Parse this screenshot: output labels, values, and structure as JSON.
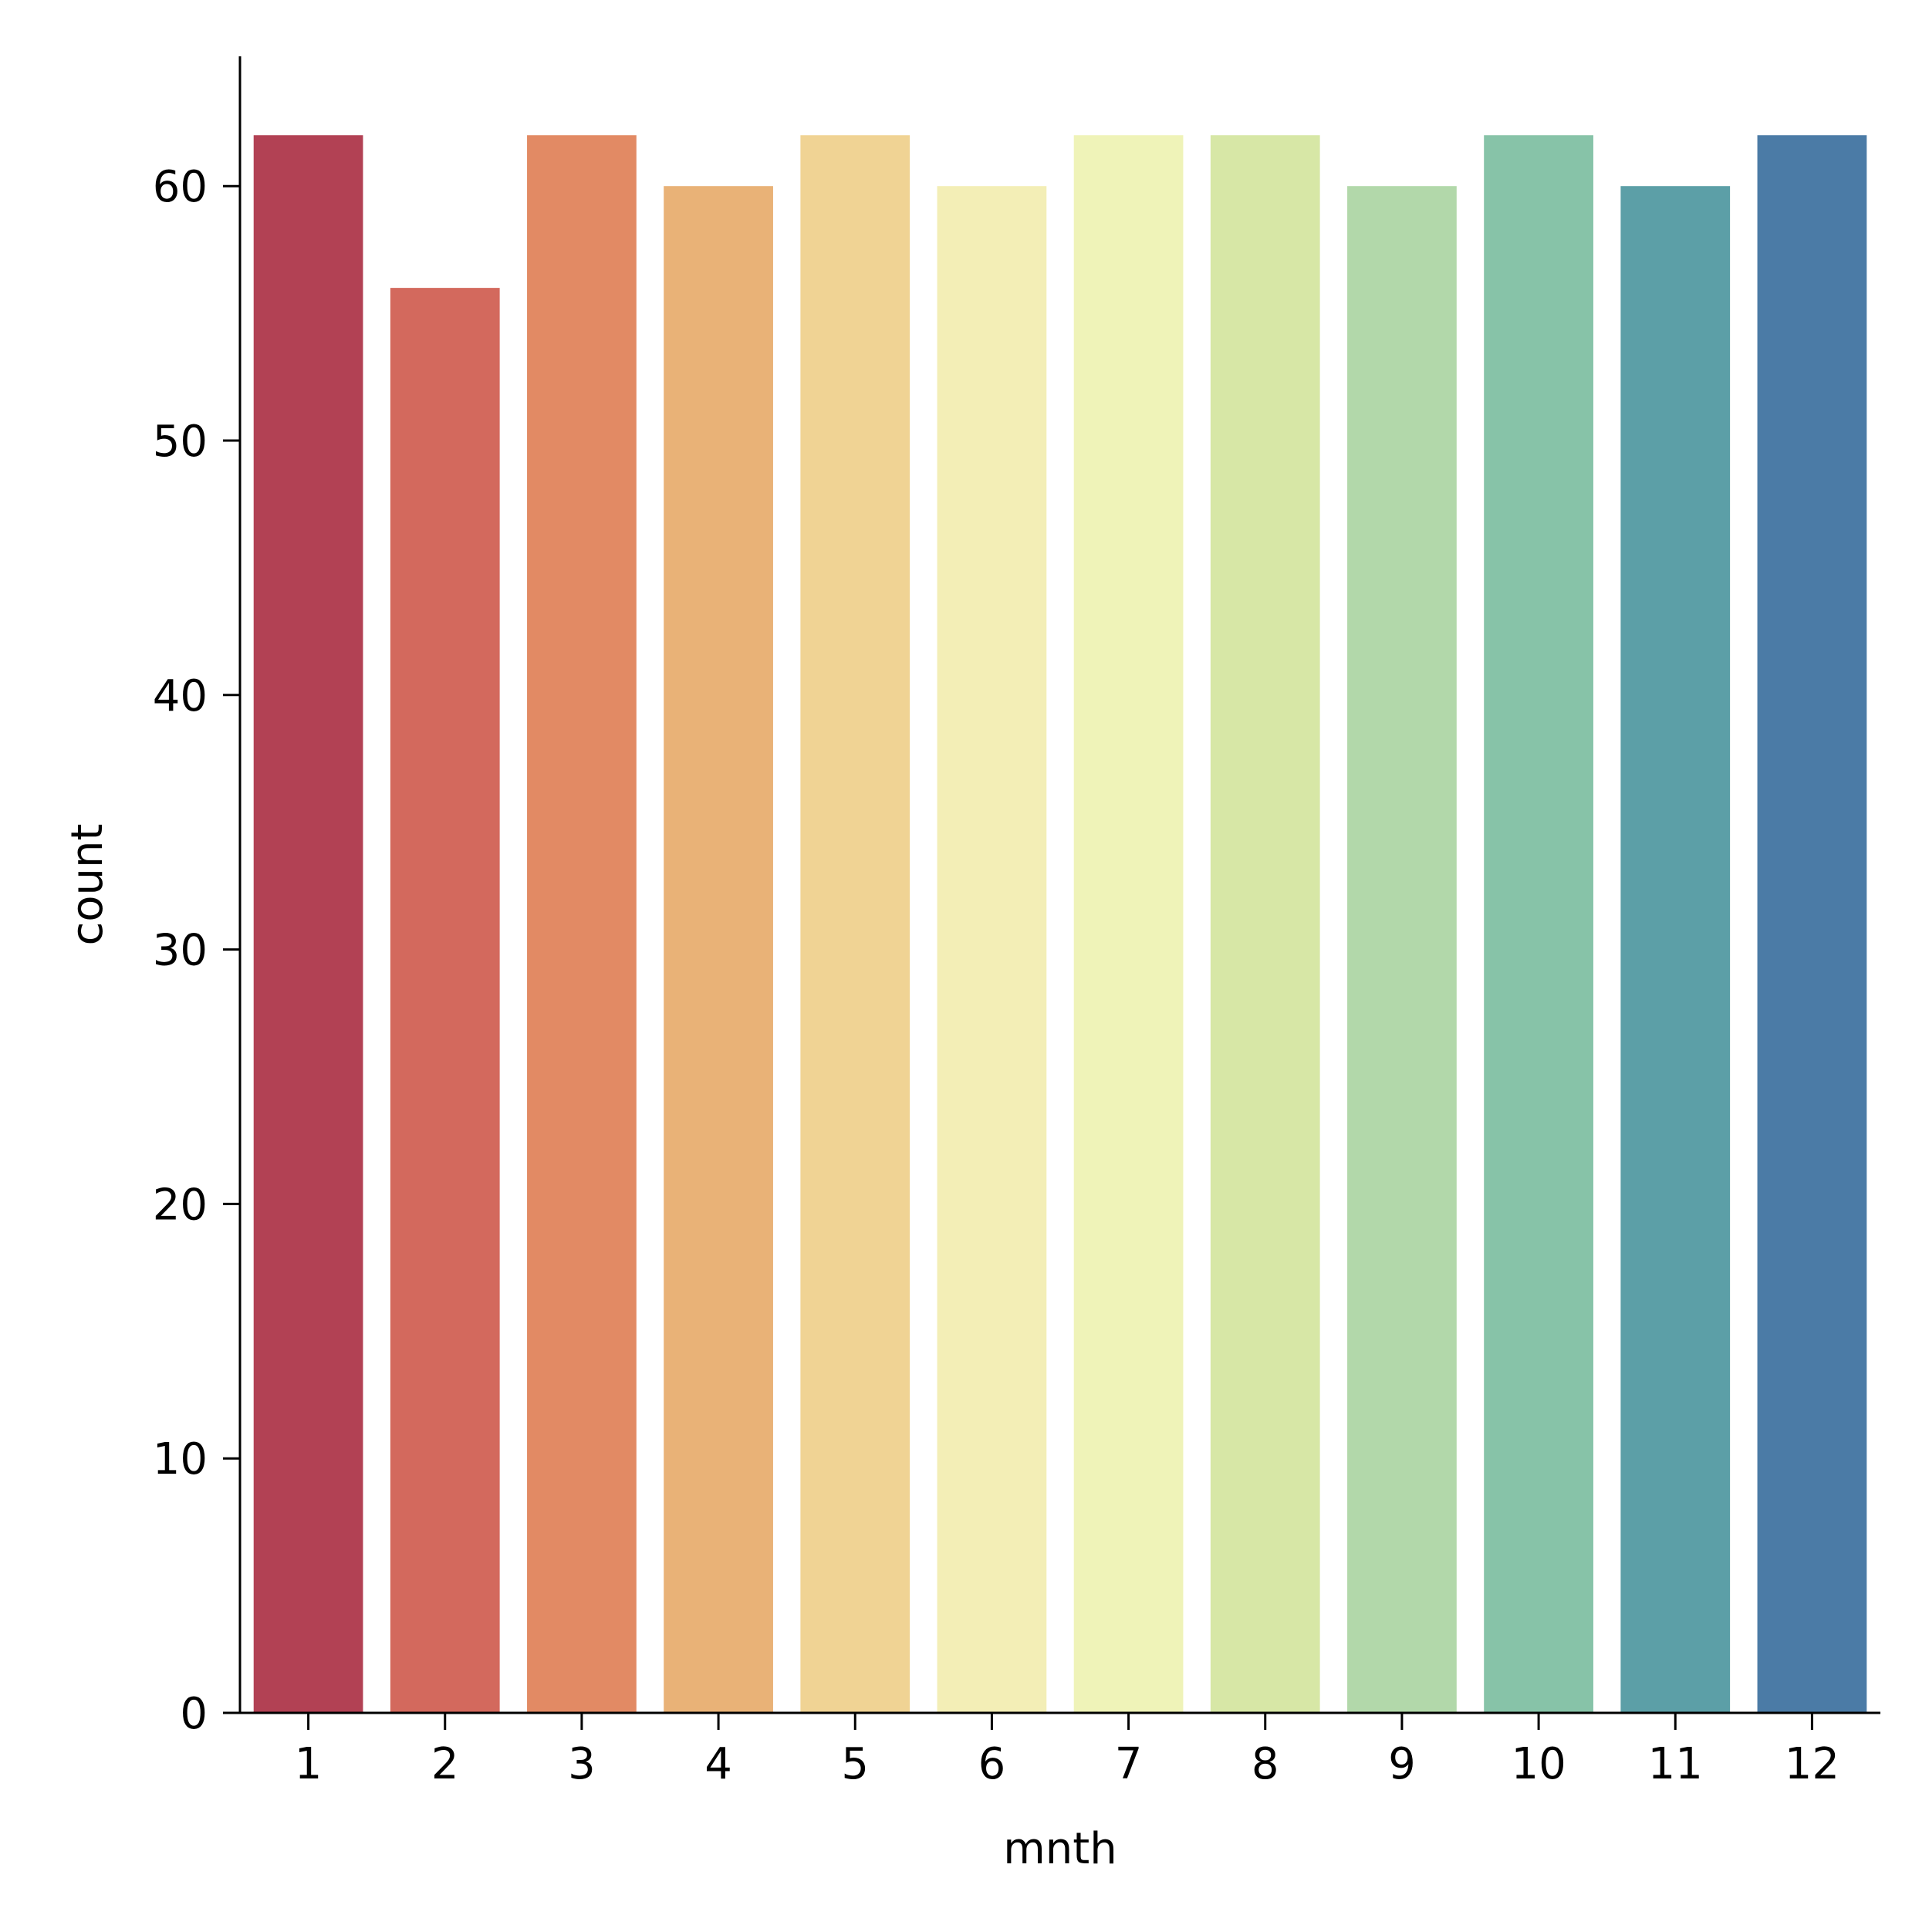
{
  "chart_data": {
    "type": "bar",
    "title": "",
    "xlabel": "mnth",
    "ylabel": "count",
    "categories": [
      "1",
      "2",
      "3",
      "4",
      "5",
      "6",
      "7",
      "8",
      "9",
      "10",
      "11",
      "12"
    ],
    "values": [
      62,
      56,
      62,
      60,
      62,
      60,
      62,
      62,
      60,
      62,
      60,
      62
    ],
    "colors": [
      "#b24154",
      "#d3695d",
      "#e28a64",
      "#e9b277",
      "#f0d394",
      "#f3eeb6",
      "#eff3b8",
      "#d7e7a6",
      "#b2d8aa",
      "#87c3a8",
      "#5c9fa7",
      "#4b7ba6"
    ],
    "yticks": [
      0,
      10,
      20,
      30,
      40,
      50,
      60
    ],
    "ylim": [
      0,
      65.1
    ],
    "grid": false,
    "legend": "none"
  }
}
